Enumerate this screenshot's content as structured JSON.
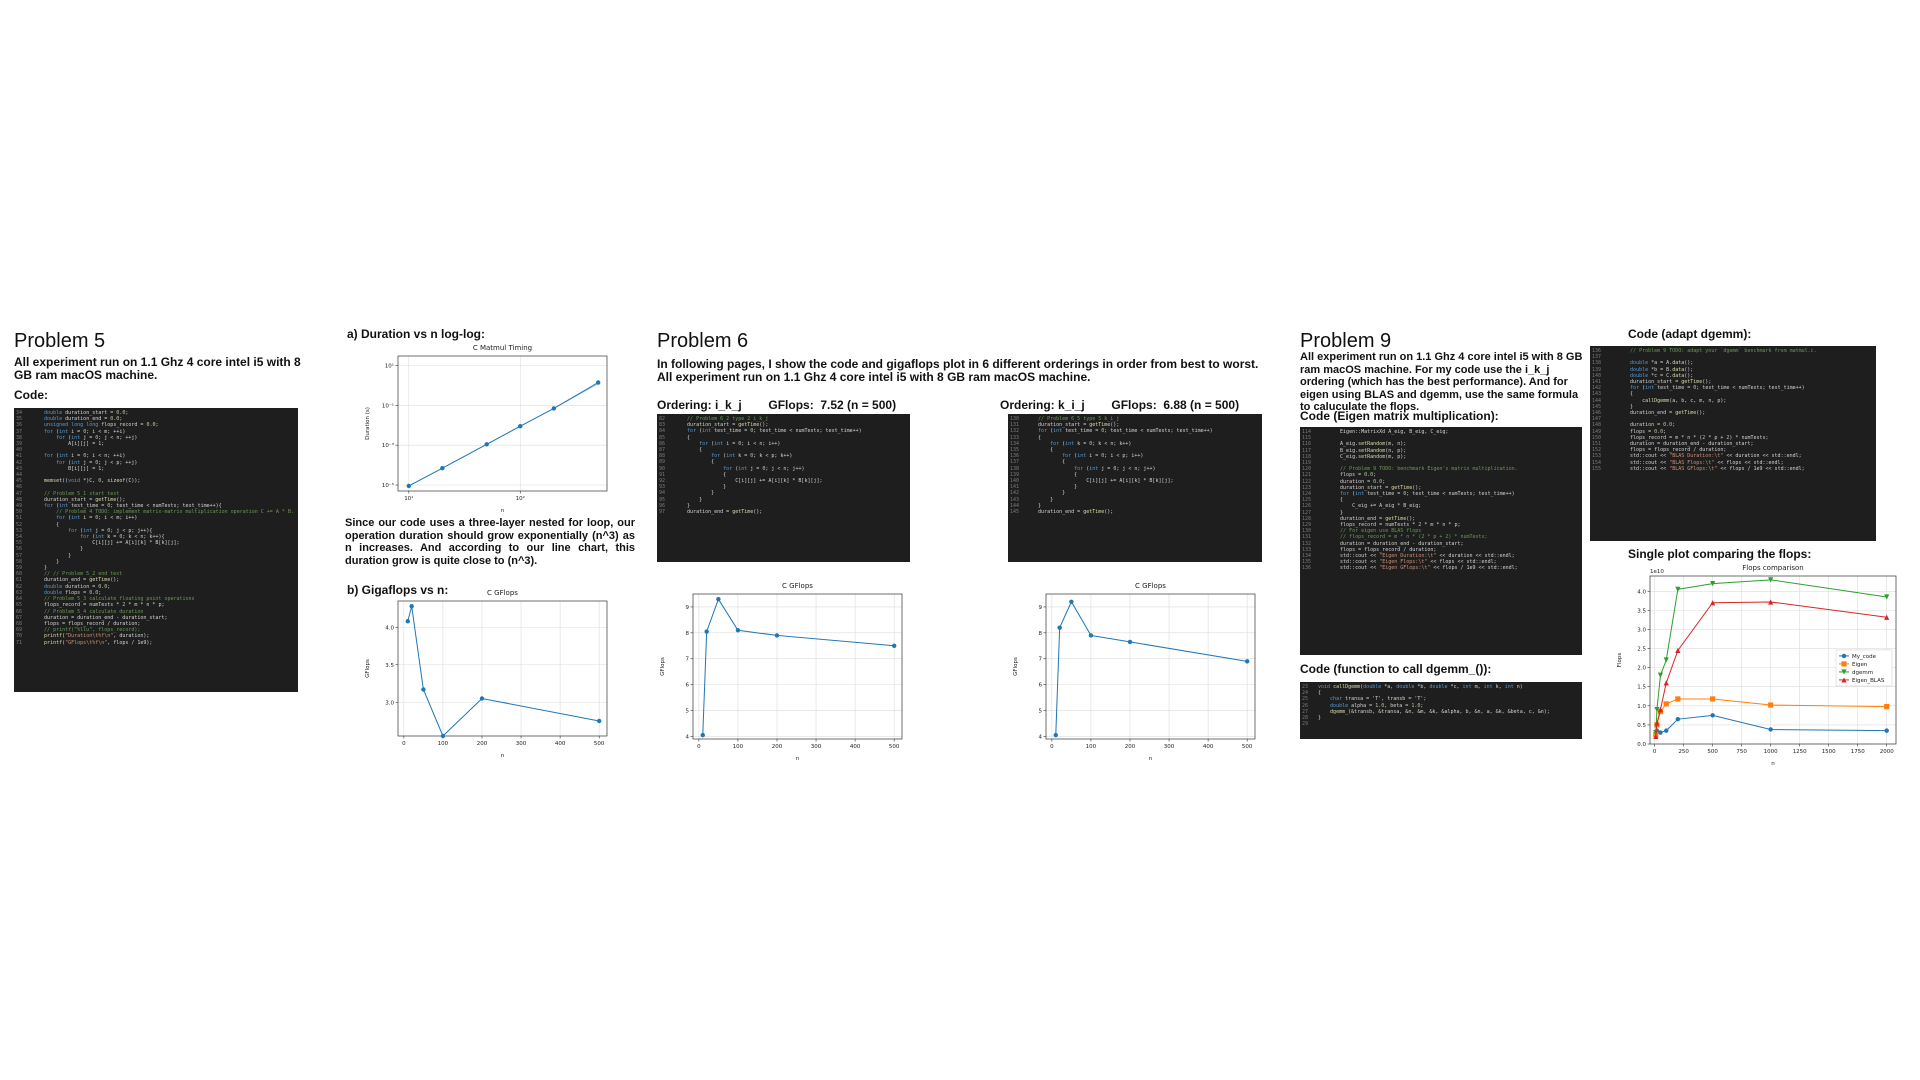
{
  "p5": {
    "title": "Problem 5",
    "desc": "All experiment run on 1.1 Ghz 4 core intel i5 with 8 GB ram macOS machine.",
    "code_label": "Code:",
    "code": [
      [
        "34",
        "    double duration_start = 0.0;"
      ],
      [
        "35",
        "    double duration_end = 0.0;"
      ],
      [
        "36",
        "    unsigned long long flops_record = 0.0;"
      ],
      [
        "37",
        "    for (int i = 0; i < m; ++i)"
      ],
      [
        "38",
        "        for (int j = 0; j < n; ++j)"
      ],
      [
        "39",
        "            A[i][j] = 1;"
      ],
      [
        "40",
        ""
      ],
      [
        "41",
        "    for (int i = 0; i < n; ++i)"
      ],
      [
        "42",
        "        for (int j = 0; j < p; ++j)"
      ],
      [
        "43",
        "            B[i][j] = 1;"
      ],
      [
        "44",
        ""
      ],
      [
        "45",
        "    memset((void *)C, 0, sizeof(C));"
      ],
      [
        "46",
        ""
      ],
      [
        "47",
        "    // Problem 5_1 start test"
      ],
      [
        "48",
        "    duration_start = getTime();"
      ],
      [
        "49",
        "    for (int test_time = 0; test_time < numTests; test_time++){"
      ],
      [
        "50",
        "        // Problem 4 TODO: implement matrix-matrix multiplication operation C += A * B."
      ],
      [
        "51",
        "        for (int i = 0; i < m; i++)"
      ],
      [
        "52",
        "        {"
      ],
      [
        "53",
        "            for (int j = 0; j < p; j++){"
      ],
      [
        "54",
        "                for (int k = 0; k < n; k++){"
      ],
      [
        "55",
        "                    C[i][j] += A[i][k] * B[k][j];"
      ],
      [
        "56",
        "                }"
      ],
      [
        "57",
        "            }"
      ],
      [
        "58",
        "        }"
      ],
      [
        "59",
        "    }"
      ],
      [
        "60",
        "    // // Problem 5_2 end test"
      ],
      [
        "61",
        "    duration_end = getTime();"
      ],
      [
        "62",
        "    double duration = 0.0;"
      ],
      [
        "63",
        "    double flops = 0.0;"
      ],
      [
        "64",
        "    // Problem 5_3 calculate floating point operations"
      ],
      [
        "65",
        "    flops_record = numTests * 2 * m * n * p;"
      ],
      [
        "66",
        "    // Problem 5_4 calculate duration"
      ],
      [
        "67",
        "    duration = duration_end - duration_start;"
      ],
      [
        "68",
        "    flops = flops_record / duration;"
      ],
      [
        "69",
        "    // printf(\"%llu\", flops_record);"
      ],
      [
        "70",
        "    printf(\"Duration\\t%f\\n\", duration);"
      ],
      [
        "71",
        "    printf(\"GFlops\\t%f\\n\", flops / 1e9);"
      ]
    ]
  },
  "dur": {
    "label": "a) Duration vs n log-log:",
    "text": "Since our code uses a three-layer nested for loop, our operation duration should grow exponentially (n^3) as n increases. And according to our line chart, this duration grow is quite close to (n^3).",
    "gflops_label": "b) Gigaflops vs n:"
  },
  "p6": {
    "title": "Problem 6",
    "desc1": "In following pages, I show the code and gigaflops plot in 6 different orderings in order from best to worst.",
    "desc2": "All experiment run on 1.1 Ghz 4 core intel i5 with 8 GB ram macOS machine.",
    "ordA": "Ordering: i_k_j        GFlops:  7.52 (n = 500)",
    "ordB": "Ordering: k_i_j        GFlops:  6.88 (n = 500)",
    "codeA": [
      [
        "82",
        "    // Problem 6_2 type 2 i_k_j"
      ],
      [
        "83",
        "    duration_start = getTime();"
      ],
      [
        "84",
        "    for (int test_time = 0; test_time < numTests; test_time++)"
      ],
      [
        "85",
        "    {"
      ],
      [
        "86",
        "        for (int i = 0; i < n; i++)"
      ],
      [
        "87",
        "        {"
      ],
      [
        "88",
        "            for (int k = 0; k < p; k++)"
      ],
      [
        "89",
        "            {"
      ],
      [
        "90",
        "                for (int j = 0; j < n; j++)"
      ],
      [
        "91",
        "                {"
      ],
      [
        "92",
        "                    C[i][j] += A[i][k] * B[k][j];"
      ],
      [
        "93",
        "                }"
      ],
      [
        "94",
        "            }"
      ],
      [
        "95",
        "        }"
      ],
      [
        "96",
        "    }"
      ],
      [
        "97",
        "    duration_end = getTime();"
      ]
    ],
    "codeB": [
      [
        "130",
        "    // Problem 6_5 type 5 k_i_j"
      ],
      [
        "131",
        "    duration_start = getTime();"
      ],
      [
        "132",
        "    for (int test_time = 0; test_time < numTests; test_time++)"
      ],
      [
        "133",
        "    {"
      ],
      [
        "134",
        "        for (int k = 0; k < n; k++)"
      ],
      [
        "135",
        "        {"
      ],
      [
        "136",
        "            for (int i = 0; i < p; i++)"
      ],
      [
        "137",
        "            {"
      ],
      [
        "138",
        "                for (int j = 0; j < n; j++)"
      ],
      [
        "139",
        "                {"
      ],
      [
        "140",
        "                    C[i][j] += A[i][k] * B[k][j];"
      ],
      [
        "141",
        "                }"
      ],
      [
        "142",
        "            }"
      ],
      [
        "143",
        "        }"
      ],
      [
        "144",
        "    }"
      ],
      [
        "145",
        "    duration_end = getTime();"
      ]
    ]
  },
  "p9": {
    "title": "Problem 9",
    "desc": "All experiment run on 1.1 Ghz 4 core intel i5 with 8 GB ram macOS machine. For my code use the i_k_j ordering (which has the best performance). And for eigen using BLAS and dgemm, use the same formula to caluculate the flops.",
    "eigen_label": "Code (Eigen matrix multiplication):",
    "eigen_code": [
      [
        "114",
        "    Eigen::MatrixXd A_eig, B_eig, C_eig;"
      ],
      [
        "115",
        ""
      ],
      [
        "116",
        "    A_eig.setRandom(m, n);"
      ],
      [
        "117",
        "    B_eig.setRandom(n, p);"
      ],
      [
        "118",
        "    C_eig.setRandom(m, p);"
      ],
      [
        "119",
        ""
      ],
      [
        "120",
        "    // Problem 9 TODO: benchmark Eigen's matrix multiplication."
      ],
      [
        "121",
        "    flops = 0.0;"
      ],
      [
        "122",
        "    duration = 0.0;"
      ],
      [
        "123",
        "    duration_start = getTime();"
      ],
      [
        "124",
        "    for (int test_time = 0; test_time < numTests; test_time++)"
      ],
      [
        "125",
        "    {"
      ],
      [
        "126",
        "        C_eig += A_eig * B_eig;"
      ],
      [
        "127",
        "    }"
      ],
      [
        "128",
        "    duration_end = getTime();"
      ],
      [
        "129",
        "    flops_record = numTests * 2 * m * n * p;"
      ],
      [
        "130",
        "    // For eigen use BLAS flops"
      ],
      [
        "131",
        "    // flops_record = m * n * (2 * p + 2) * numTests;"
      ],
      [
        "132",
        "    duration = duration_end - duration_start;"
      ],
      [
        "133",
        "    flops = flops_record / duration;"
      ],
      [
        "134",
        "    std::cout << \"Eigen Duration:\\t\" << duration << std::endl;"
      ],
      [
        "135",
        "    std::cout << \"Eigen Flops:\\t\" << flops << std::endl;"
      ],
      [
        "136",
        "    std::cout << \"Eigen GFlops:\\t\" << flops / 1e9 << std::endl;"
      ]
    ],
    "dgemm_fn_label": "Code (function to call dgemm_()):",
    "dgemm_fn_code": [
      [
        "23",
        "void callDgemm(double *a, double *b, double *c, int m, int k, int n)"
      ],
      [
        "24",
        "{"
      ],
      [
        "25",
        "    char transa = 'T', transb = 'T';"
      ],
      [
        "26",
        "    double alpha = 1.0, beta = 1.0;"
      ],
      [
        "27",
        "    dgemm_(&transb, &transa, &n, &m, &k, &alpha, b, &n, a, &k, &beta, c, &n);"
      ],
      [
        "28",
        "}"
      ],
      [
        "29",
        ""
      ]
    ],
    "adapt_label": "Code (adapt dgemm):",
    "adapt_code": [
      [
        "136",
        "    // Problem 9 TODO: adapt your `dgemm` benchmark from matmul.c."
      ],
      [
        "137",
        ""
      ],
      [
        "138",
        "    double *a = A.data();"
      ],
      [
        "139",
        "    double *b = B.data();"
      ],
      [
        "140",
        "    double *c = C.data();"
      ],
      [
        "141",
        "    duration_start = getTime();"
      ],
      [
        "142",
        "    for (int test_time = 0; test_time < numTests; test_time++)"
      ],
      [
        "143",
        "    {"
      ],
      [
        "144",
        "        callDgemm(a, b, c, m, n, p);"
      ],
      [
        "145",
        "    }"
      ],
      [
        "146",
        "    duration_end = getTime();"
      ],
      [
        "147",
        ""
      ],
      [
        "148",
        "    duration = 0.0;"
      ],
      [
        "149",
        "    flops = 0.0;"
      ],
      [
        "150",
        "    flops_record = m * n * (2 * p + 2) * numTests;"
      ],
      [
        "151",
        "    duration = duration_end - duration_start;"
      ],
      [
        "152",
        "    flops = flops_record / duration;"
      ],
      [
        "153",
        "    std::cout << \"BLAS Duration:\\t\" << duration << std::endl;"
      ],
      [
        "154",
        "    std::cout << \"BLAS Flops:\\t\" << flops << std::endl;"
      ],
      [
        "155",
        "    std::cout << \"BLAS GFlops:\\t\" << flops / 1e9 << std::endl;"
      ]
    ],
    "single_plot_label": "Single plot comparing the flops:"
  },
  "colors": {
    "code_bg": "#1e1e1e",
    "line_blue": "#1f77b4",
    "orange": "#ff7f0e",
    "green": "#2ca02c",
    "red": "#d62728"
  },
  "chart_data": [
    {
      "id": "timing",
      "type": "line",
      "title": "C Matmul Timing",
      "xlabel": "n",
      "ylabel": "Duration (s)",
      "xscale": "log",
      "yscale": "log",
      "xlim": [
        8,
        600
      ],
      "ylim": [
        5e-06,
        30
      ],
      "xticks": [
        10,
        100
      ],
      "xtick_labels": [
        "10¹",
        "10²"
      ],
      "yticks": [
        1e-05,
        0.001,
        0.1,
        10
      ],
      "ytick_labels": [
        "10⁻⁵",
        "10⁻³",
        "10⁻¹",
        "10¹"
      ],
      "grid": true,
      "x": [
        10,
        20,
        50,
        100,
        200,
        500
      ],
      "values": [
        9e-06,
        7e-05,
        0.0011,
        0.009,
        0.07,
        1.4
      ],
      "ref": [
        9e-06,
        7e-05,
        0.0011,
        0.009,
        0.07,
        1.2
      ]
    },
    {
      "id": "gflops5",
      "type": "line",
      "title": "C GFlops",
      "xlabel": "n",
      "ylabel": "GFlops",
      "xlim": [
        -15,
        520
      ],
      "ylim": [
        2.55,
        4.35
      ],
      "xticks": [
        0,
        100,
        200,
        300,
        400,
        500
      ],
      "yticks": [
        3.0,
        3.5,
        4.0
      ],
      "ytick_labels": [
        "3.0",
        "3.5",
        "4.0"
      ],
      "grid": true,
      "x": [
        10,
        20,
        50,
        100,
        200,
        500
      ],
      "values": [
        4.08,
        4.28,
        3.17,
        2.55,
        3.05,
        2.75
      ]
    },
    {
      "id": "gflops6a",
      "type": "line",
      "title": "C GFlops",
      "xlabel": "n",
      "ylabel": "GFlops",
      "xlim": [
        -15,
        520
      ],
      "ylim": [
        3.9,
        9.5
      ],
      "xticks": [
        0,
        100,
        200,
        300,
        400,
        500
      ],
      "yticks": [
        4,
        5,
        6,
        7,
        8,
        9
      ],
      "ytick_labels": [
        "4",
        "5",
        "6",
        "7",
        "8",
        "9"
      ],
      "grid": true,
      "x": [
        10,
        20,
        50,
        100,
        200,
        500
      ],
      "values": [
        4.05,
        8.05,
        9.3,
        8.1,
        7.9,
        7.5
      ]
    },
    {
      "id": "gflops6b",
      "type": "line",
      "title": "C GFlops",
      "xlabel": "n",
      "ylabel": "GFlops",
      "xlim": [
        -15,
        520
      ],
      "ylim": [
        3.9,
        9.5
      ],
      "xticks": [
        0,
        100,
        200,
        300,
        400,
        500
      ],
      "yticks": [
        4,
        5,
        6,
        7,
        8,
        9
      ],
      "ytick_labels": [
        "4",
        "5",
        "6",
        "7",
        "8",
        "9"
      ],
      "grid": true,
      "x": [
        10,
        20,
        50,
        100,
        200,
        500
      ],
      "values": [
        4.05,
        8.2,
        9.2,
        7.9,
        7.65,
        6.9
      ]
    },
    {
      "id": "flops9",
      "type": "line",
      "title": "Flops comparison",
      "xlabel": "n",
      "ylabel": "Flops",
      "offset_label": "1e10",
      "xlim": [
        -40,
        2080
      ],
      "ylim": [
        0,
        4.4
      ],
      "xticks": [
        0,
        250,
        500,
        750,
        1000,
        1250,
        1500,
        1750,
        2000
      ],
      "yticks": [
        0.0,
        0.5,
        1.0,
        1.5,
        2.0,
        2.5,
        3.0,
        3.5,
        4.0
      ],
      "ytick_labels": [
        "0.0",
        "0.5",
        "1.0",
        "1.5",
        "2.0",
        "2.5",
        "3.0",
        "3.5",
        "4.0"
      ],
      "grid": true,
      "legend": "center-right",
      "x": [
        10,
        20,
        50,
        100,
        200,
        500,
        1000,
        2000
      ],
      "series": [
        {
          "name": "My_code",
          "color": "#1f77b4",
          "marker": "circle",
          "values": [
            0.2,
            0.35,
            0.3,
            0.35,
            0.65,
            0.75,
            0.38,
            0.35
          ]
        },
        {
          "name": "Eigen",
          "color": "#ff7f0e",
          "marker": "square",
          "values": [
            0.25,
            0.5,
            0.85,
            1.05,
            1.18,
            1.18,
            1.02,
            0.98
          ]
        },
        {
          "name": "dgemm",
          "color": "#2ca02c",
          "marker": "triangle-down",
          "values": [
            0.3,
            0.9,
            1.8,
            2.2,
            4.05,
            4.2,
            4.3,
            3.85
          ]
        },
        {
          "name": "Eigen_BLAS",
          "color": "#d62728",
          "marker": "triangle-up",
          "values": [
            0.2,
            0.55,
            0.9,
            1.6,
            2.45,
            3.7,
            3.72,
            3.32
          ]
        }
      ]
    }
  ]
}
